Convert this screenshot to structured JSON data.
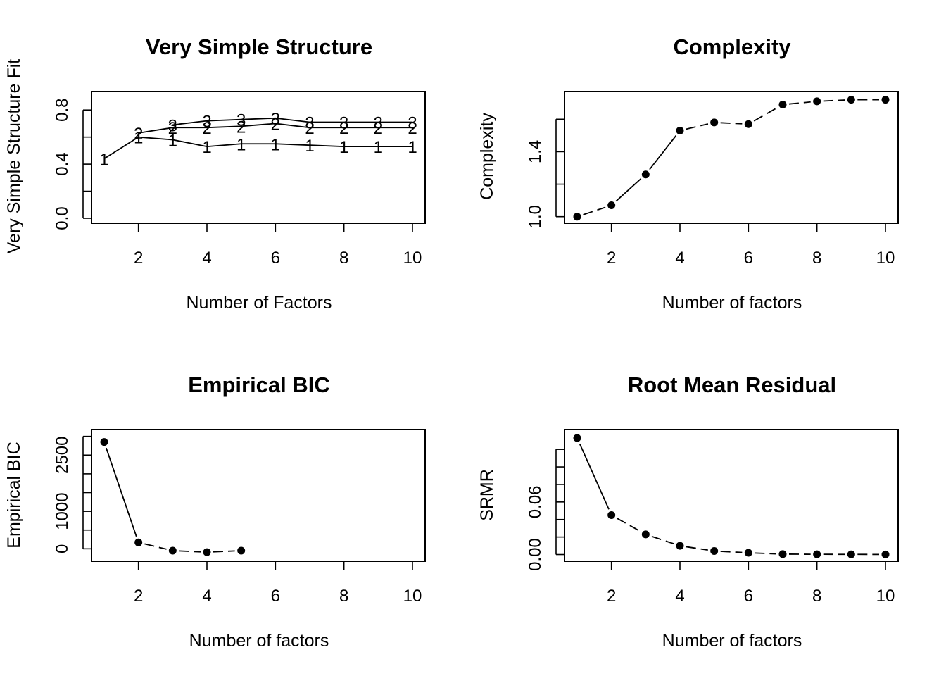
{
  "chart_data": [
    {
      "type": "line",
      "title": "Very Simple Structure",
      "xlabel": "Number of Factors",
      "ylabel": "Very Simple Structure Fit",
      "xlim": [
        1,
        10
      ],
      "ylim": [
        0.0,
        0.9
      ],
      "x_ticks": [
        2,
        4,
        6,
        8,
        10
      ],
      "y_ticks": [
        0.0,
        0.2,
        0.4,
        0.6,
        0.8
      ],
      "y_tick_labels": [
        "0.0",
        "",
        "0.4",
        "",
        "0.8"
      ],
      "markers": "labels",
      "series": [
        {
          "name": "1",
          "x": [
            1,
            2,
            3,
            4,
            5,
            6,
            7,
            8,
            9,
            10
          ],
          "values": [
            0.44,
            0.6,
            0.58,
            0.53,
            0.55,
            0.55,
            0.54,
            0.53,
            0.53,
            0.53
          ]
        },
        {
          "name": "2",
          "x": [
            2,
            3,
            4,
            5,
            6,
            7,
            8,
            9,
            10
          ],
          "values": [
            0.63,
            0.67,
            0.67,
            0.68,
            0.7,
            0.67,
            0.67,
            0.67,
            0.67
          ]
        },
        {
          "name": "3",
          "x": [
            3,
            4,
            5,
            6,
            7,
            8,
            9,
            10
          ],
          "values": [
            0.69,
            0.72,
            0.73,
            0.74,
            0.71,
            0.71,
            0.71,
            0.71
          ]
        }
      ]
    },
    {
      "type": "line",
      "title": "Complexity",
      "xlabel": "Number of factors",
      "ylabel": "Complexity",
      "xlim": [
        1,
        10
      ],
      "ylim": [
        0.99,
        1.74
      ],
      "x_ticks": [
        2,
        4,
        6,
        8,
        10
      ],
      "y_ticks": [
        1.0,
        1.2,
        1.4,
        1.6
      ],
      "y_tick_labels": [
        "1.0",
        "",
        "1.4",
        ""
      ],
      "markers": "points",
      "series": [
        {
          "x": [
            1,
            2,
            3,
            4,
            5,
            6,
            7,
            8,
            9,
            10
          ],
          "values": [
            1.0,
            1.07,
            1.26,
            1.53,
            1.58,
            1.57,
            1.69,
            1.71,
            1.72,
            1.72
          ]
        }
      ]
    },
    {
      "type": "line",
      "title": "Empirical BIC",
      "xlabel": "Number of factors",
      "ylabel": "Empirical BIC",
      "xlim": [
        1,
        10
      ],
      "ylim": [
        -200,
        3050
      ],
      "x_ticks": [
        2,
        4,
        6,
        8,
        10
      ],
      "y_ticks": [
        0,
        500,
        1000,
        1500,
        2000,
        2500,
        3000
      ],
      "y_tick_labels": [
        "0",
        "",
        "1000",
        "",
        "",
        "2500",
        ""
      ],
      "markers": "points",
      "series": [
        {
          "x": [
            1,
            2,
            3,
            4,
            5
          ],
          "values": [
            2850,
            170,
            -50,
            -90,
            -50
          ]
        }
      ]
    },
    {
      "type": "line",
      "title": "Root Mean Residual",
      "xlabel": "Number of factors",
      "ylabel": "SRMR",
      "xlim": [
        1,
        10
      ],
      "ylim": [
        -0.002,
        0.137
      ],
      "x_ticks": [
        2,
        4,
        6,
        8,
        10
      ],
      "y_ticks": [
        0.0,
        0.02,
        0.04,
        0.06,
        0.08,
        0.1,
        0.12
      ],
      "y_tick_labels": [
        "0.00",
        "",
        "",
        "0.06",
        "",
        "",
        ""
      ],
      "markers": "points",
      "series": [
        {
          "x": [
            1,
            2,
            3,
            4,
            5,
            6,
            7,
            8,
            9,
            10
          ],
          "values": [
            0.133,
            0.045,
            0.023,
            0.01,
            0.004,
            0.002,
            0.0005,
            0.0003,
            0.0002,
            0.0001
          ]
        }
      ]
    }
  ]
}
